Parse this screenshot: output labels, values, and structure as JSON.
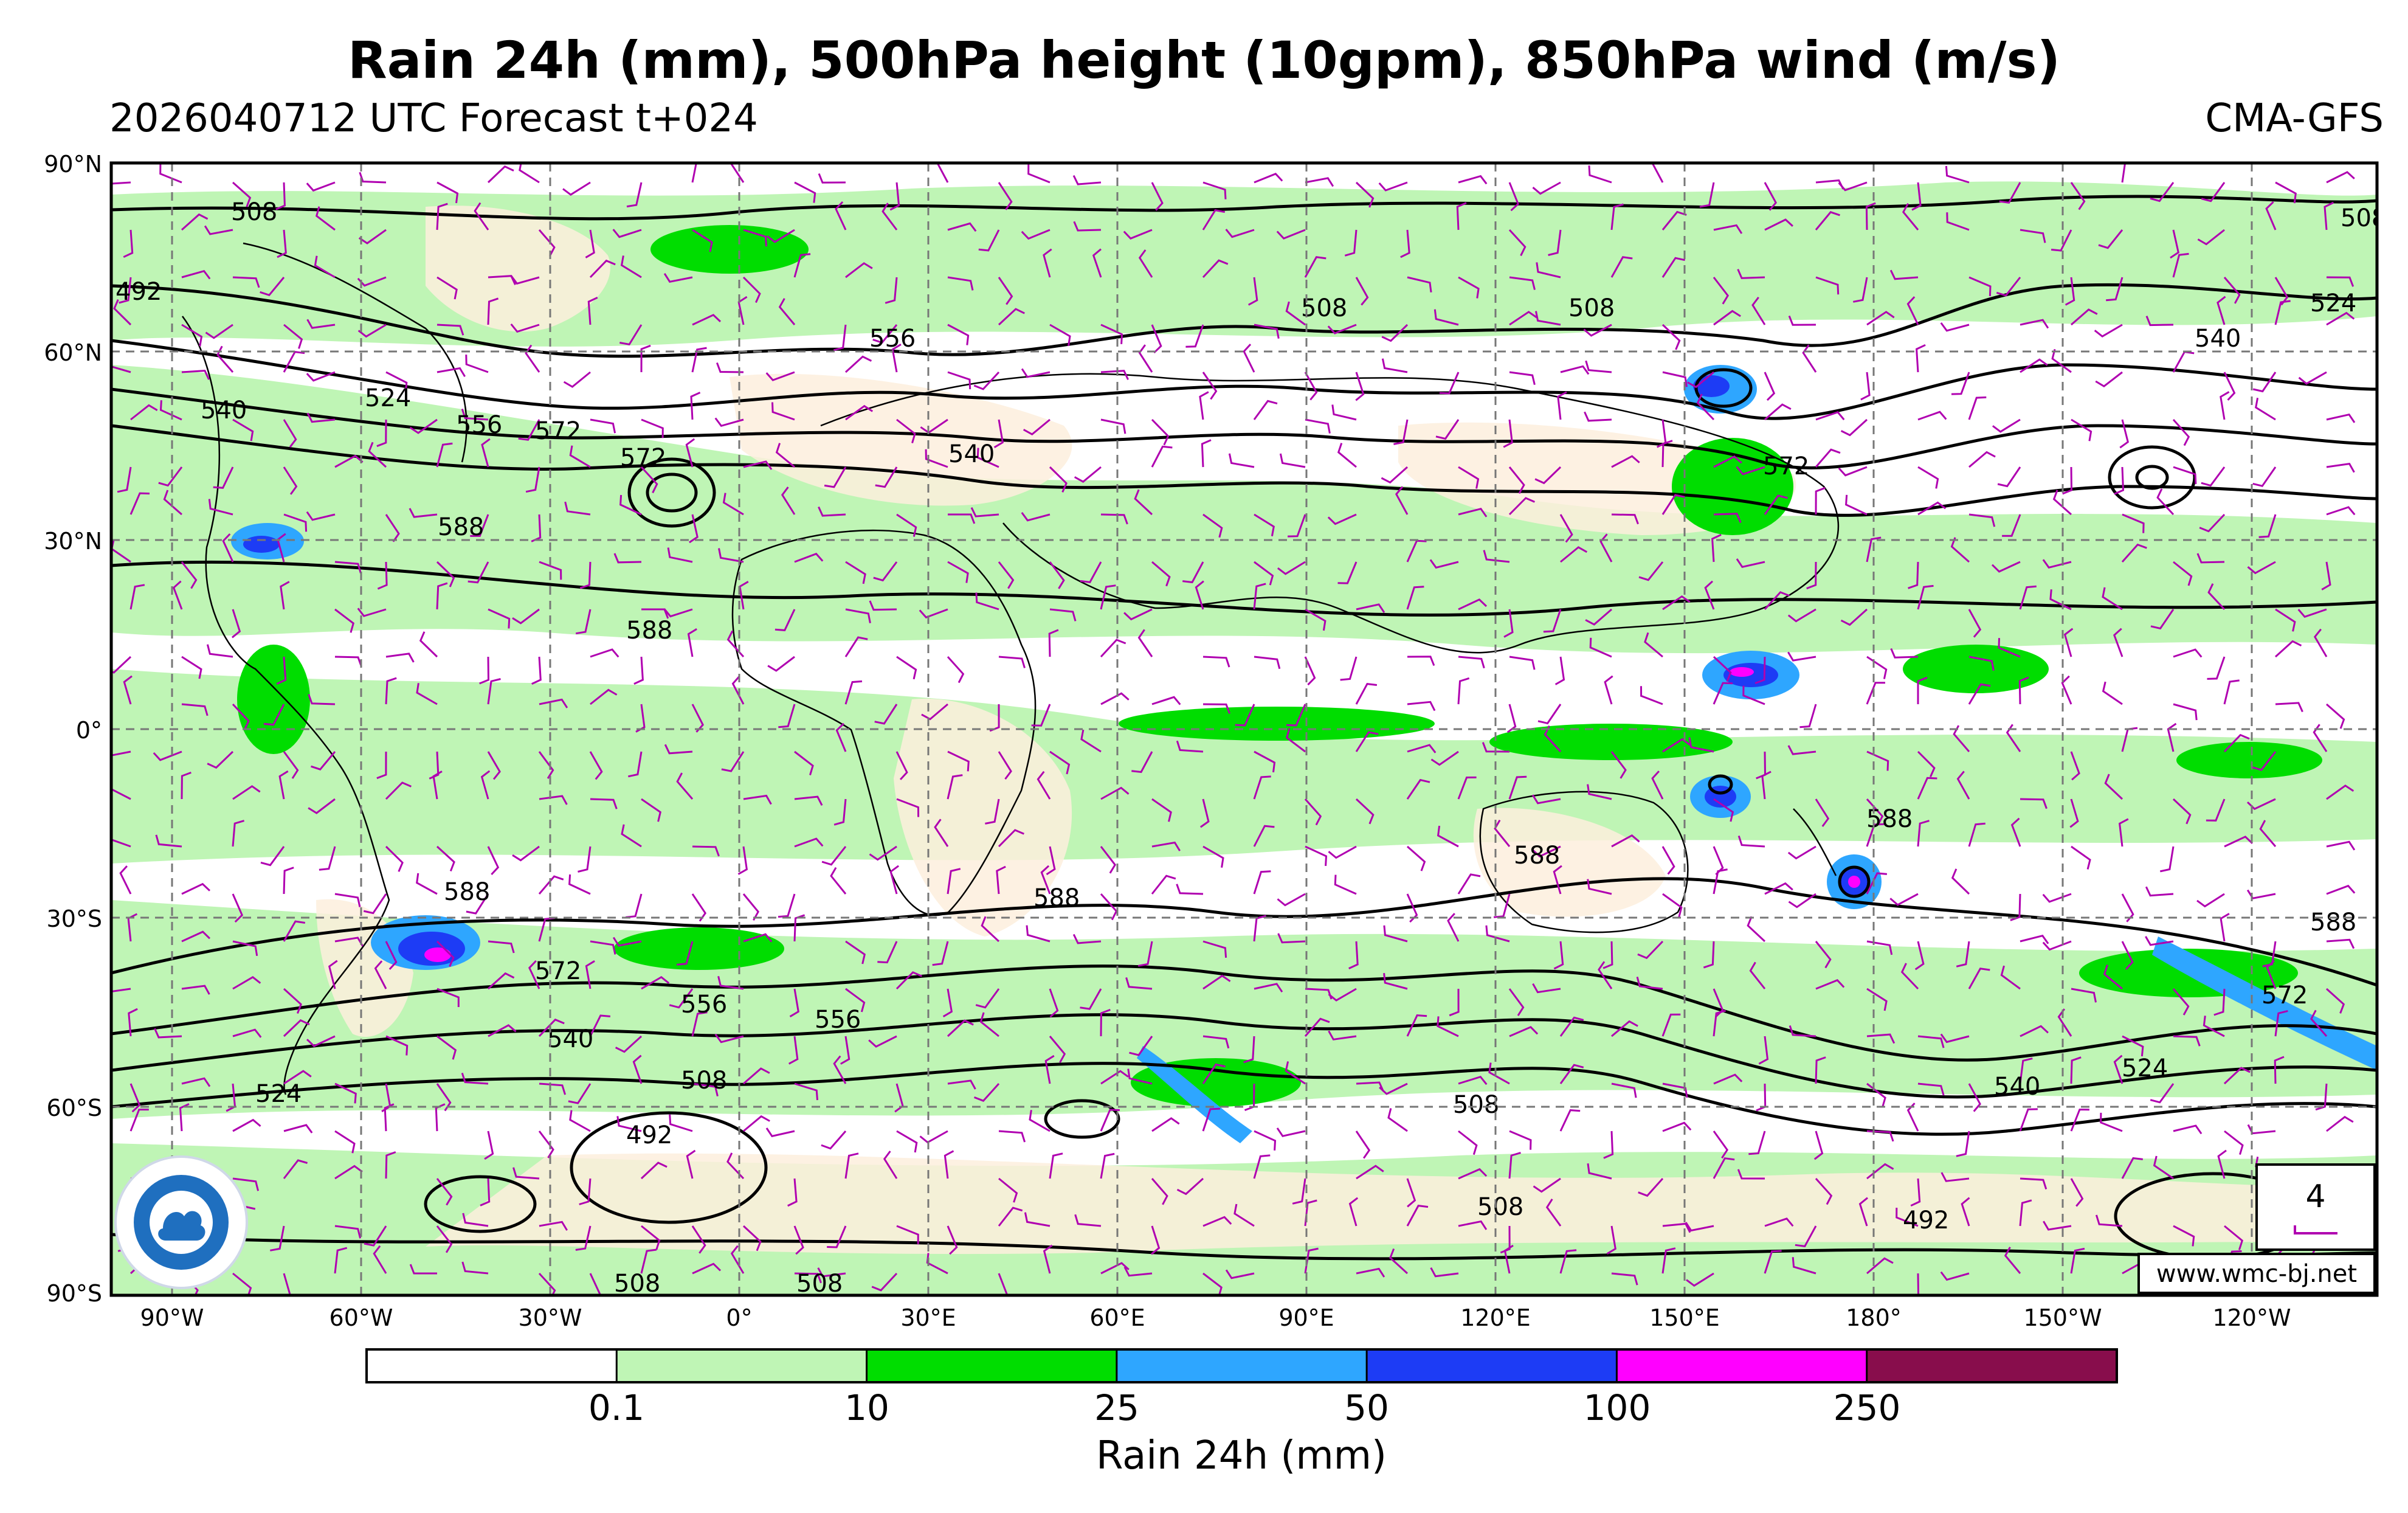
{
  "header": {
    "title": "Rain 24h (mm), 500hPa height (10gpm), 850hPa wind (m/s)",
    "run_info": "2026040712 UTC Forecast t+024",
    "model": "CMA-GFS"
  },
  "axes": {
    "lat_labels": [
      "90°N",
      "60°N",
      "30°N",
      "0°",
      "30°S",
      "60°S",
      "90°S"
    ],
    "lon_labels": [
      "90°W",
      "60°W",
      "30°W",
      "0°",
      "30°E",
      "60°E",
      "90°E",
      "120°E",
      "150°E",
      "180°",
      "150°W",
      "120°W"
    ]
  },
  "contour_labels": [
    "508",
    "492",
    "524",
    "540",
    "556",
    "572",
    "588"
  ],
  "legend_box": {
    "value": "4"
  },
  "website": "www.wmc-bj.net",
  "colorbar": {
    "title": "Rain 24h (mm)",
    "tick_labels": [
      "0.1",
      "10",
      "25",
      "50",
      "100",
      "250"
    ],
    "colors": [
      "#ffffff",
      "#bff5b5",
      "#00dd00",
      "#2ea6ff",
      "#1d3cf5",
      "#ff00ff",
      "#880d4c"
    ]
  },
  "colors": {
    "barb": "#b000b0",
    "contour": "#000000",
    "land": "#fdeedd"
  }
}
